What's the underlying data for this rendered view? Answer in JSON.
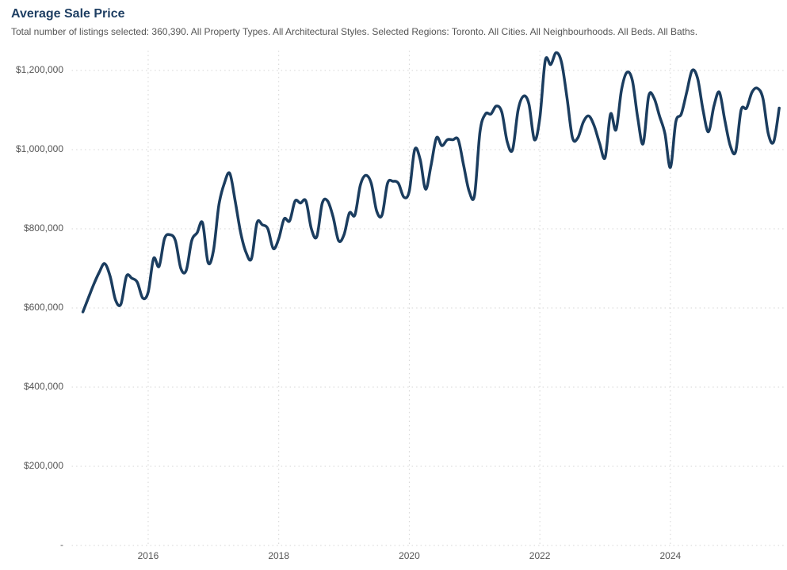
{
  "chart_data": {
    "type": "line",
    "title": "Average Sale Price",
    "subtitle": "Total number of listings selected: 360,390. All Property Types. All Architectural Styles. Selected Regions: Toronto. All Cities. All Neighbourhoods. All Beds. All Baths.",
    "x": [
      2015,
      2015.083,
      2015.167,
      2015.25,
      2015.333,
      2015.417,
      2015.5,
      2015.583,
      2015.667,
      2015.75,
      2015.833,
      2015.917,
      2016,
      2016.083,
      2016.167,
      2016.25,
      2016.333,
      2016.417,
      2016.5,
      2016.583,
      2016.667,
      2016.75,
      2016.833,
      2016.917,
      2017,
      2017.083,
      2017.167,
      2017.25,
      2017.333,
      2017.417,
      2017.5,
      2017.583,
      2017.667,
      2017.75,
      2017.833,
      2017.917,
      2018,
      2018.083,
      2018.167,
      2018.25,
      2018.333,
      2018.417,
      2018.5,
      2018.583,
      2018.667,
      2018.75,
      2018.833,
      2018.917,
      2019,
      2019.083,
      2019.167,
      2019.25,
      2019.333,
      2019.417,
      2019.5,
      2019.583,
      2019.667,
      2019.75,
      2019.833,
      2019.917,
      2020,
      2020.083,
      2020.167,
      2020.25,
      2020.333,
      2020.417,
      2020.5,
      2020.583,
      2020.667,
      2020.75,
      2020.833,
      2020.917,
      2021,
      2021.083,
      2021.167,
      2021.25,
      2021.333,
      2021.417,
      2021.5,
      2021.583,
      2021.667,
      2021.75,
      2021.833,
      2021.917,
      2022,
      2022.083,
      2022.167,
      2022.25,
      2022.333,
      2022.417,
      2022.5,
      2022.583,
      2022.667,
      2022.75,
      2022.833,
      2022.917,
      2023,
      2023.083,
      2023.167,
      2023.25,
      2023.333,
      2023.417,
      2023.5,
      2023.583,
      2023.667,
      2023.75,
      2023.833,
      2023.917,
      2024,
      2024.083,
      2024.167,
      2024.25,
      2024.333,
      2024.417,
      2024.5,
      2024.583,
      2024.667,
      2024.75,
      2024.833,
      2024.917,
      2025,
      2025.083,
      2025.167,
      2025.25,
      2025.333,
      2025.417,
      2025.5,
      2025.583,
      2025.667
    ],
    "series": [
      {
        "color": "#1b3d5f",
        "values": [
          590000,
          625000,
          660000,
          690000,
          712000,
          680000,
          620000,
          610000,
          680000,
          675000,
          665000,
          625000,
          640000,
          725000,
          705000,
          775000,
          785000,
          770000,
          700000,
          695000,
          770000,
          790000,
          815000,
          715000,
          745000,
          860000,
          915000,
          940000,
          870000,
          790000,
          740000,
          725000,
          815000,
          810000,
          800000,
          750000,
          775000,
          825000,
          820000,
          870000,
          865000,
          870000,
          800000,
          780000,
          865000,
          870000,
          830000,
          770000,
          785000,
          840000,
          835000,
          910000,
          935000,
          915000,
          845000,
          835000,
          915000,
          920000,
          915000,
          880000,
          895000,
          1000000,
          975000,
          900000,
          960000,
          1030000,
          1010000,
          1025000,
          1025000,
          1025000,
          960000,
          895000,
          885000,
          1045000,
          1090000,
          1090000,
          1110000,
          1095000,
          1020000,
          1000000,
          1100000,
          1135000,
          1115000,
          1025000,
          1080000,
          1225000,
          1215000,
          1245000,
          1220000,
          1130000,
          1030000,
          1030000,
          1070000,
          1085000,
          1060000,
          1015000,
          980000,
          1090000,
          1050000,
          1150000,
          1195000,
          1175000,
          1080000,
          1015000,
          1135000,
          1130000,
          1085000,
          1040000,
          955000,
          1070000,
          1090000,
          1145000,
          1200000,
          1180000,
          1100000,
          1045000,
          1110000,
          1145000,
          1075000,
          1010000,
          995000,
          1100000,
          1105000,
          1145000,
          1155000,
          1130000,
          1040000,
          1020000,
          1105000
        ]
      }
    ],
    "xlim": [
      2014.83,
      2025.75
    ],
    "xticks": [
      2016,
      2018,
      2020,
      2022,
      2024
    ],
    "ylim": [
      0,
      1250000
    ],
    "yticks": [
      {
        "value": 0,
        "label": "-"
      },
      {
        "value": 200000,
        "label": "$200,000"
      },
      {
        "value": 400000,
        "label": "$400,000"
      },
      {
        "value": 600000,
        "label": "$600,000"
      },
      {
        "value": 800000,
        "label": "$800,000"
      },
      {
        "value": 1000000,
        "label": "$1,000,000"
      },
      {
        "value": 1200000,
        "label": "$1,200,000"
      }
    ],
    "grid": true
  }
}
